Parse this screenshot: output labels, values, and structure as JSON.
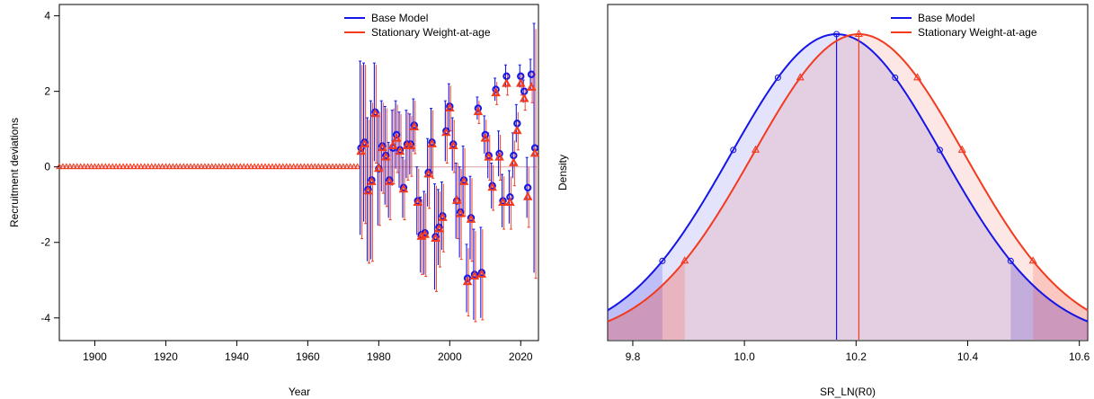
{
  "colors": {
    "base": "#1515E6",
    "alt": "#F23A1F",
    "zero_line": "#D8A0A0"
  },
  "legend": {
    "entries": [
      "Base Model",
      "Stationary Weight-at-age"
    ]
  },
  "chart_data": [
    {
      "type": "scatter",
      "xlabel": "Year",
      "ylabel": "Recruitment deviations",
      "xlim": [
        1890,
        2025
      ],
      "ylim": [
        -4.6,
        4.3
      ],
      "xticks": [
        1900,
        1920,
        1940,
        1960,
        1980,
        2000,
        2020
      ],
      "yticks": [
        -4,
        -2,
        0,
        2,
        4
      ],
      "legend_position": "top-right",
      "grid": false,
      "fixed_zero_years": [
        1890,
        1974
      ],
      "series": [
        {
          "name": "Base Model",
          "x": [
            1975,
            1976,
            1977,
            1978,
            1979,
            1980,
            1981,
            1982,
            1983,
            1984,
            1985,
            1986,
            1987,
            1988,
            1989,
            1990,
            1991,
            1992,
            1993,
            1994,
            1995,
            1996,
            1997,
            1998,
            1999,
            2000,
            2001,
            2002,
            2003,
            2004,
            2005,
            2006,
            2007,
            2008,
            2009,
            2010,
            2011,
            2012,
            2013,
            2014,
            2015,
            2016,
            2017,
            2018,
            2019,
            2020,
            2021,
            2022,
            2023,
            2024
          ],
          "y": [
            0.5,
            0.65,
            -0.6,
            -0.35,
            1.45,
            -0.05,
            0.55,
            0.3,
            -0.35,
            0.5,
            0.85,
            0.45,
            -0.55,
            0.6,
            0.6,
            1.1,
            -0.9,
            -1.8,
            -1.75,
            -0.15,
            0.65,
            -1.85,
            -1.6,
            -1.3,
            0.95,
            1.6,
            0.6,
            -0.9,
            -1.2,
            -0.35,
            -2.95,
            -1.35,
            -2.85,
            1.55,
            -2.8,
            0.85,
            0.3,
            -0.5,
            2.05,
            0.35,
            -0.9,
            2.4,
            -0.8,
            0.3,
            1.15,
            2.4,
            2.0,
            -0.55,
            2.45,
            0.5
          ],
          "err": [
            2.3,
            2.1,
            1.9,
            2.1,
            1.3,
            1.5,
            1.2,
            1.3,
            1.0,
            1.0,
            0.9,
            1.0,
            0.8,
            0.9,
            0.8,
            0.7,
            0.9,
            1.0,
            1.1,
            0.9,
            0.9,
            1.4,
            1.0,
            0.9,
            0.8,
            0.6,
            0.7,
            1.0,
            1.2,
            0.9,
            0.9,
            1.1,
            1.2,
            0.3,
            1.2,
            0.5,
            0.6,
            0.6,
            0.3,
            0.6,
            0.7,
            0.3,
            0.7,
            0.6,
            0.5,
            0.3,
            0.3,
            0.8,
            0.4,
            3.3
          ]
        },
        {
          "name": "Stationary Weight-at-age",
          "x": [
            1975,
            1976,
            1977,
            1978,
            1979,
            1980,
            1981,
            1982,
            1983,
            1984,
            1985,
            1986,
            1987,
            1988,
            1989,
            1990,
            1991,
            1992,
            1993,
            1994,
            1995,
            1996,
            1997,
            1998,
            1999,
            2000,
            2001,
            2002,
            2003,
            2004,
            2005,
            2006,
            2007,
            2008,
            2009,
            2010,
            2011,
            2012,
            2013,
            2014,
            2015,
            2016,
            2017,
            2018,
            2019,
            2020,
            2021,
            2022,
            2023,
            2024
          ],
          "y": [
            0.4,
            0.6,
            -0.65,
            -0.4,
            1.4,
            -0.05,
            0.5,
            0.25,
            -0.4,
            0.55,
            0.75,
            0.4,
            -0.6,
            0.55,
            0.55,
            1.05,
            -0.95,
            -1.85,
            -1.8,
            -0.2,
            0.6,
            -1.9,
            -1.65,
            -1.35,
            0.9,
            1.55,
            0.55,
            -0.9,
            -1.25,
            -0.4,
            -3.05,
            -1.4,
            -2.9,
            1.45,
            -2.85,
            0.75,
            0.25,
            -0.55,
            1.95,
            0.25,
            -0.95,
            2.2,
            -0.95,
            0.1,
            0.95,
            2.2,
            1.8,
            -0.8,
            2.1,
            0.35
          ],
          "err": [
            2.3,
            2.1,
            1.9,
            2.1,
            1.3,
            1.5,
            1.2,
            1.3,
            1.0,
            1.0,
            0.9,
            1.0,
            0.8,
            0.9,
            0.8,
            0.7,
            0.9,
            1.0,
            1.1,
            0.9,
            0.9,
            1.4,
            1.0,
            0.9,
            0.8,
            0.6,
            0.7,
            1.0,
            1.2,
            0.9,
            0.9,
            1.1,
            1.2,
            0.3,
            1.2,
            0.5,
            0.6,
            0.6,
            0.3,
            0.6,
            0.7,
            0.3,
            0.7,
            0.6,
            0.5,
            0.3,
            0.3,
            0.8,
            0.4,
            3.3
          ]
        }
      ]
    },
    {
      "type": "area",
      "xlabel": "SR_LN(R0)",
      "ylabel": "Density",
      "xlim": [
        9.755,
        10.615
      ],
      "xticks": [
        9.8,
        10.0,
        10.2,
        10.4,
        10.6
      ],
      "xtick_labels": [
        "9.8",
        "10.0",
        "10.2",
        "10.4",
        "10.6"
      ],
      "legend_position": "top-right",
      "grid": false,
      "series": [
        {
          "name": "Base Model",
          "mean": 10.165,
          "sd": 0.1895,
          "interval": [
            9.853,
            10.477
          ],
          "marker_x": [
            9.853,
            9.98,
            10.06,
            10.165,
            10.27,
            10.35,
            10.477
          ]
        },
        {
          "name": "Stationary Weight-at-age",
          "mean": 10.205,
          "sd": 0.1895,
          "interval": [
            9.893,
            10.517
          ],
          "marker_x": [
            9.893,
            10.02,
            10.1,
            10.205,
            10.31,
            10.39,
            10.517
          ]
        }
      ]
    }
  ]
}
